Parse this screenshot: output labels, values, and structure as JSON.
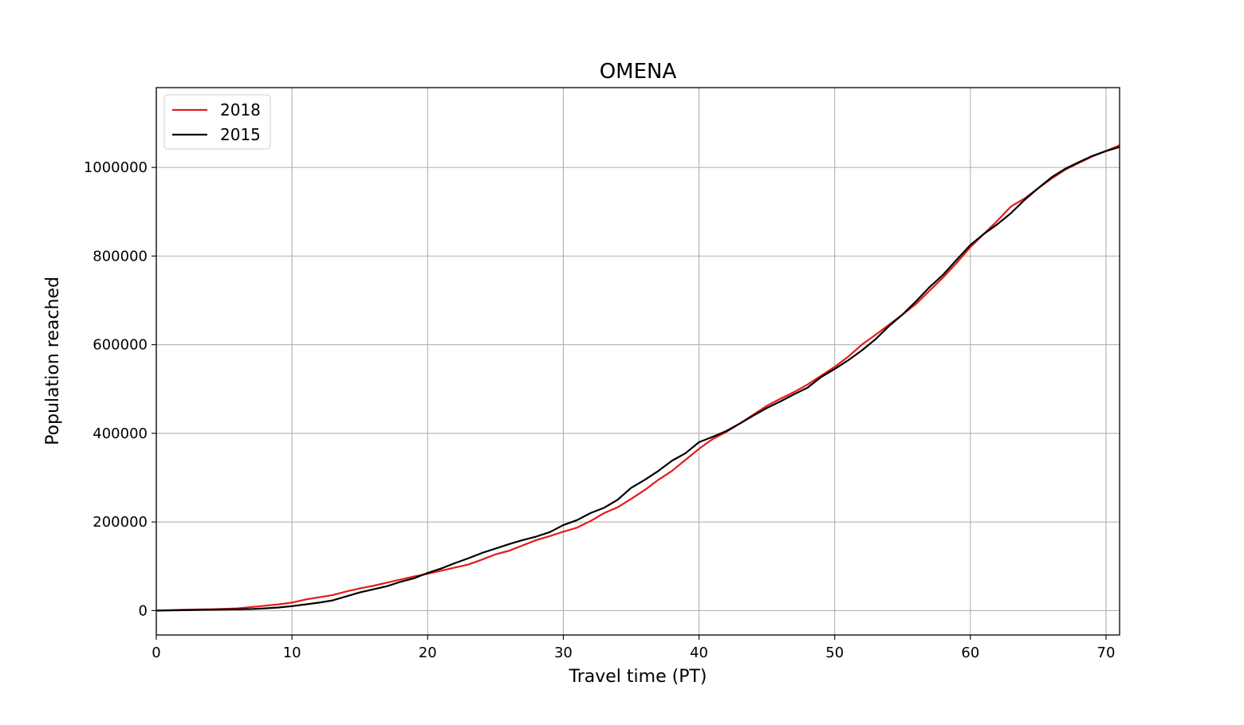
{
  "chart_data": {
    "type": "line",
    "title": "OMENA",
    "xlabel": "Travel time (PT)",
    "ylabel": "Population reached",
    "xlim": [
      0,
      71
    ],
    "ylim": [
      -55000,
      1180000
    ],
    "xticks": [
      0,
      10,
      20,
      30,
      40,
      50,
      60,
      70
    ],
    "yticks": [
      0,
      200000,
      400000,
      600000,
      800000,
      1000000
    ],
    "grid": true,
    "legend": "top-left",
    "x": [
      0,
      1,
      2,
      3,
      4,
      5,
      6,
      7,
      8,
      9,
      10,
      11,
      12,
      13,
      14,
      15,
      16,
      17,
      18,
      19,
      20,
      21,
      22,
      23,
      24,
      25,
      26,
      27,
      28,
      29,
      30,
      31,
      32,
      33,
      34,
      35,
      36,
      37,
      38,
      39,
      40,
      41,
      42,
      43,
      44,
      45,
      46,
      47,
      48,
      49,
      50,
      51,
      52,
      53,
      54,
      55,
      56,
      57,
      58,
      59,
      60,
      61,
      62,
      63,
      64,
      65,
      66,
      67,
      68,
      69,
      70,
      71
    ],
    "series": [
      {
        "name": "2018",
        "color": "#e41a1c",
        "values": [
          0,
          1000,
          2000,
          2500,
          3000,
          4000,
          5000,
          8000,
          11000,
          14000,
          18000,
          25000,
          30000,
          35000,
          43000,
          50000,
          56000,
          63000,
          70000,
          77000,
          83000,
          90000,
          97000,
          104000,
          115000,
          127000,
          135000,
          147000,
          159000,
          168000,
          178000,
          187000,
          202000,
          220000,
          233000,
          252000,
          272000,
          295000,
          315000,
          340000,
          365000,
          387000,
          403000,
          422000,
          442000,
          462000,
          478000,
          493000,
          510000,
          530000,
          550000,
          573000,
          600000,
          622000,
          645000,
          668000,
          692000,
          722000,
          752000,
          785000,
          820000,
          850000,
          880000,
          912000,
          930000,
          953000,
          975000,
          995000,
          1010000,
          1025000,
          1037000,
          1050000
        ]
      },
      {
        "name": "2015",
        "color": "#000000",
        "values": [
          0,
          500,
          1000,
          1500,
          2000,
          2500,
          3000,
          3500,
          5000,
          7000,
          10000,
          14000,
          18000,
          23000,
          32000,
          41000,
          48000,
          55000,
          65000,
          73000,
          85000,
          95000,
          107000,
          118000,
          130000,
          140000,
          150000,
          159000,
          167000,
          177000,
          193000,
          204000,
          220000,
          232000,
          250000,
          277000,
          295000,
          315000,
          338000,
          355000,
          380000,
          392000,
          405000,
          422000,
          440000,
          457000,
          472000,
          488000,
          503000,
          527000,
          545000,
          565000,
          587000,
          612000,
          642000,
          668000,
          698000,
          730000,
          758000,
          792000,
          825000,
          850000,
          872000,
          897000,
          927000,
          953000,
          978000,
          997000,
          1012000,
          1026000,
          1037000,
          1046000
        ]
      }
    ]
  }
}
